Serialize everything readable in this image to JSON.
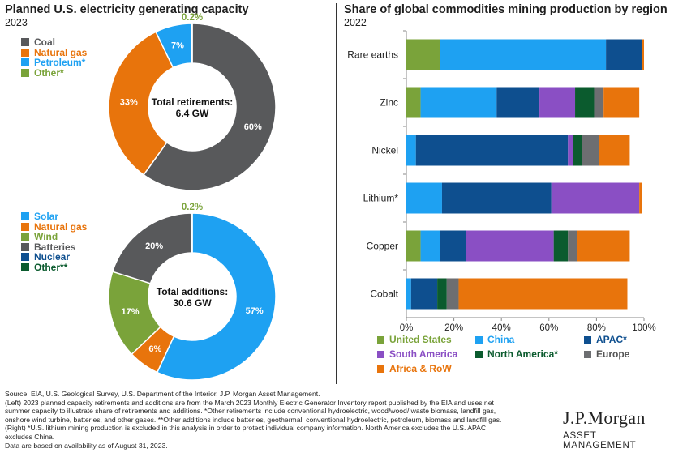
{
  "left": {
    "title": "Planned U.S. electricity generating capacity",
    "subtitle": "2023",
    "retirements": {
      "center_line1": "Total retirements:",
      "center_line2": "6.4 GW",
      "top_label": "0.2%",
      "legend": [
        {
          "label": "Coal",
          "color": "#58595b"
        },
        {
          "label": "Natural gas",
          "color": "#e8740c"
        },
        {
          "label": "Petroleum*",
          "color": "#1ea1f2"
        },
        {
          "label": "Other*",
          "color": "#7aa33a"
        }
      ]
    },
    "additions": {
      "center_line1": "Total additions:",
      "center_line2": "30.6 GW",
      "top_label": "0.2%",
      "legend": [
        {
          "label": "Solar",
          "color": "#1ea1f2"
        },
        {
          "label": "Natural gas",
          "color": "#e8740c"
        },
        {
          "label": "Wind",
          "color": "#7aa33a"
        },
        {
          "label": "Batteries",
          "color": "#58595b"
        },
        {
          "label": "Nuclear",
          "color": "#0e4f8f"
        },
        {
          "label": "Other**",
          "color": "#0b5b2e"
        }
      ]
    }
  },
  "right": {
    "title": "Share of global commodities mining production by region",
    "subtitle": "2022",
    "legend": [
      {
        "label": "United States",
        "color": "#7aa33a"
      },
      {
        "label": "China",
        "color": "#1ea1f2"
      },
      {
        "label": "APAC*",
        "color": "#0e4f8f"
      },
      {
        "label": "South America",
        "color": "#8a4fc4"
      },
      {
        "label": "North America*",
        "color": "#0b5b2e"
      },
      {
        "label": "Europe",
        "color": "#6d6e71"
      },
      {
        "label": "Africa & RoW",
        "color": "#e8740c"
      }
    ]
  },
  "chart_data": [
    {
      "type": "pie",
      "title": "Total retirements: 6.4 GW",
      "categories": [
        "Coal",
        "Natural gas",
        "Petroleum*",
        "Other*"
      ],
      "values": [
        60,
        33,
        7,
        0.2
      ],
      "labels": [
        "60%",
        "33%",
        "7%",
        "0.2%"
      ],
      "colors": [
        "#58595b",
        "#e8740c",
        "#1ea1f2",
        "#7aa33a"
      ]
    },
    {
      "type": "pie",
      "title": "Total additions: 30.6 GW",
      "categories": [
        "Solar",
        "Natural gas",
        "Wind",
        "Batteries",
        "Nuclear",
        "Other**"
      ],
      "values": [
        57,
        6,
        17,
        20,
        0,
        0.2
      ],
      "labels": [
        "57%",
        "6%",
        "17%",
        "20%",
        "",
        "0.2%"
      ],
      "colors": [
        "#1ea1f2",
        "#e8740c",
        "#7aa33a",
        "#58595b",
        "#0e4f8f",
        "#0b5b2e"
      ]
    },
    {
      "type": "bar",
      "orientation": "horizontal",
      "stacked": true,
      "categories": [
        "Rare earths",
        "Zinc",
        "Nickel",
        "Lithium*",
        "Copper",
        "Cobalt"
      ],
      "series": [
        {
          "name": "United States",
          "color": "#7aa33a",
          "values": [
            14,
            6,
            0,
            0,
            6,
            0
          ]
        },
        {
          "name": "China",
          "color": "#1ea1f2",
          "values": [
            70,
            32,
            4,
            15,
            8,
            2
          ]
        },
        {
          "name": "APAC*",
          "color": "#0e4f8f",
          "values": [
            15,
            18,
            64,
            46,
            11,
            11
          ]
        },
        {
          "name": "South America",
          "color": "#8a4fc4",
          "values": [
            0,
            15,
            2,
            37,
            37,
            0
          ]
        },
        {
          "name": "North America*",
          "color": "#0b5b2e",
          "values": [
            0,
            8,
            4,
            0,
            6,
            4
          ]
        },
        {
          "name": "Europe",
          "color": "#6d6e71",
          "values": [
            0,
            4,
            7,
            0,
            4,
            5
          ]
        },
        {
          "name": "Africa & RoW",
          "color": "#e8740c",
          "values": [
            1,
            15,
            13,
            1,
            22,
            71
          ]
        }
      ],
      "xlim": [
        0,
        100
      ],
      "xticks": [
        "0%",
        "20%",
        "40%",
        "60%",
        "80%",
        "100%"
      ]
    }
  ],
  "footer": {
    "lines": [
      "Source: EIA, U.S. Geological Survey,  U.S. Department of the Interior, J.P. Morgan Asset Management.",
      "(Left) 2023 planned capacity retirements and additions are from the March 2023 Monthly Electric Generator Inventory report published by the EIA and uses net",
      "summer capacity to illustrate share of retirements and additions. *Other retirements include conventional hydroelectric, wood/wood/ waste biomass, landfill gas,",
      "onshore wind turbine, batteries, and other gases. **Other additions include batteries, geothermal, conventional hydroelectric, petroleum, biomass and landfill gas.",
      "(Right) *U.S. lithium mining production is excluded in this analysis in order to protect individual company information. North America excludes the U.S. APAC",
      "excludes China.",
      "Data are based on availability as of August 31, 2023."
    ]
  },
  "logo": {
    "line1": "J.P.Morgan",
    "line2": "ASSET MANAGEMENT"
  }
}
